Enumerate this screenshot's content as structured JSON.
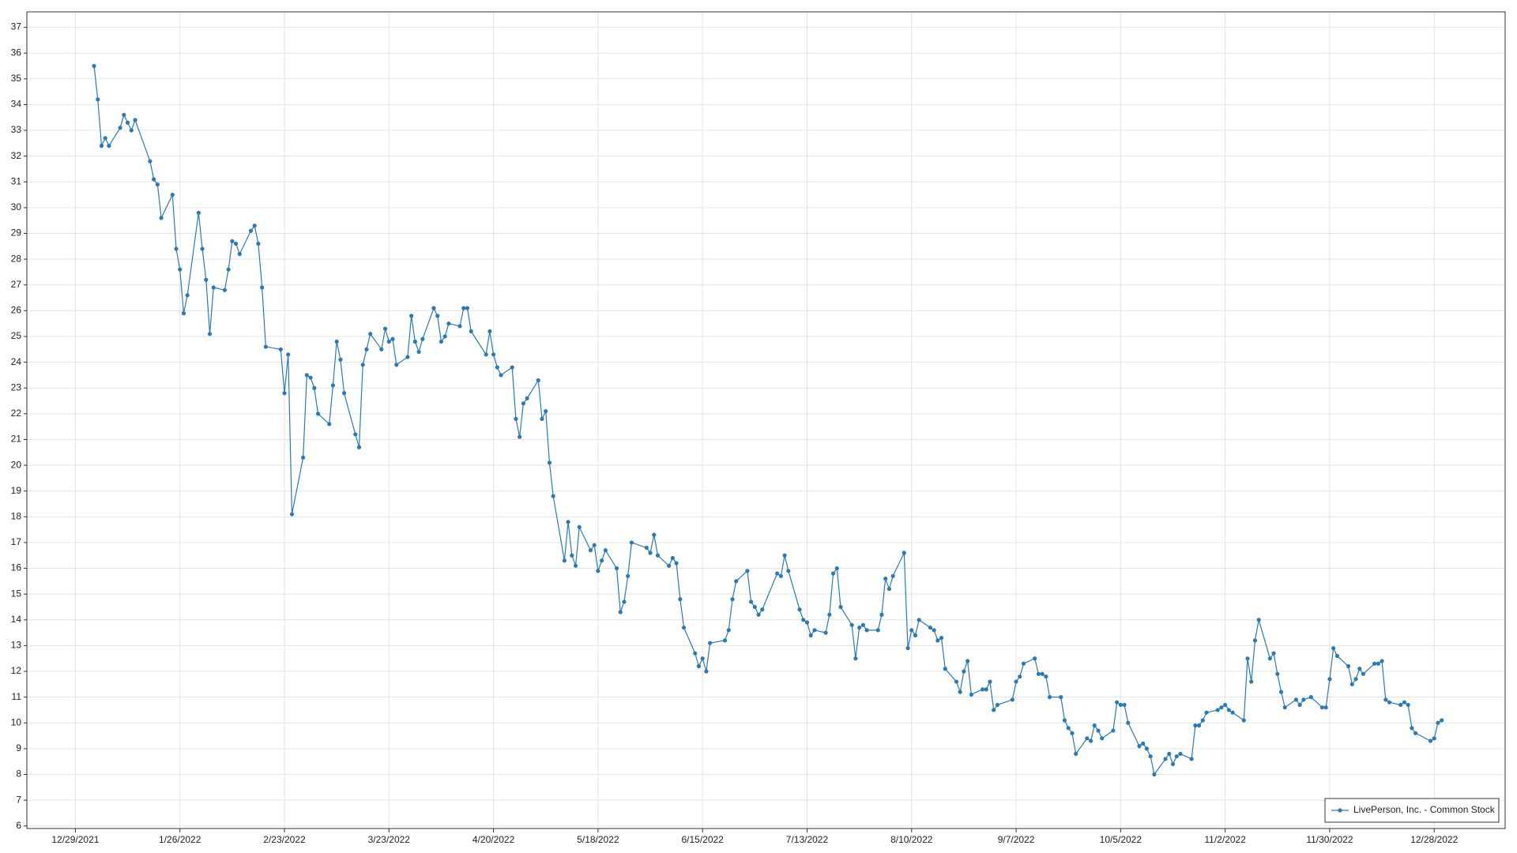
{
  "chart_data": {
    "type": "line",
    "x": [
      "1/3/2022",
      "1/4/2022",
      "1/5/2022",
      "1/6/2022",
      "1/7/2022",
      "1/10/2022",
      "1/11/2022",
      "1/12/2022",
      "1/13/2022",
      "1/14/2022",
      "1/18/2022",
      "1/19/2022",
      "1/20/2022",
      "1/21/2022",
      "1/24/2022",
      "1/25/2022",
      "1/26/2022",
      "1/27/2022",
      "1/28/2022",
      "1/31/2022",
      "2/1/2022",
      "2/2/2022",
      "2/3/2022",
      "2/4/2022",
      "2/7/2022",
      "2/8/2022",
      "2/9/2022",
      "2/10/2022",
      "2/11/2022",
      "2/14/2022",
      "2/15/2022",
      "2/16/2022",
      "2/17/2022",
      "2/18/2022",
      "2/22/2022",
      "2/23/2022",
      "2/24/2022",
      "2/25/2022",
      "2/28/2022",
      "3/1/2022",
      "3/2/2022",
      "3/3/2022",
      "3/4/2022",
      "3/7/2022",
      "3/8/2022",
      "3/9/2022",
      "3/10/2022",
      "3/11/2022",
      "3/14/2022",
      "3/15/2022",
      "3/16/2022",
      "3/17/2022",
      "3/18/2022",
      "3/21/2022",
      "3/22/2022",
      "3/23/2022",
      "3/24/2022",
      "3/25/2022",
      "3/28/2022",
      "3/29/2022",
      "3/30/2022",
      "3/31/2022",
      "4/1/2022",
      "4/4/2022",
      "4/5/2022",
      "4/6/2022",
      "4/7/2022",
      "4/8/2022",
      "4/11/2022",
      "4/12/2022",
      "4/13/2022",
      "4/14/2022",
      "4/18/2022",
      "4/19/2022",
      "4/20/2022",
      "4/21/2022",
      "4/22/2022",
      "4/25/2022",
      "4/26/2022",
      "4/27/2022",
      "4/28/2022",
      "4/29/2022",
      "5/2/2022",
      "5/3/2022",
      "5/4/2022",
      "5/5/2022",
      "5/6/2022",
      "5/9/2022",
      "5/10/2022",
      "5/11/2022",
      "5/12/2022",
      "5/13/2022",
      "5/16/2022",
      "5/17/2022",
      "5/18/2022",
      "5/19/2022",
      "5/20/2022",
      "5/23/2022",
      "5/24/2022",
      "5/25/2022",
      "5/26/2022",
      "5/27/2022",
      "5/31/2022",
      "6/1/2022",
      "6/2/2022",
      "6/3/2022",
      "6/6/2022",
      "6/7/2022",
      "6/8/2022",
      "6/9/2022",
      "6/10/2022",
      "6/13/2022",
      "6/14/2022",
      "6/15/2022",
      "6/16/2022",
      "6/17/2022",
      "6/21/2022",
      "6/22/2022",
      "6/23/2022",
      "6/24/2022",
      "6/27/2022",
      "6/28/2022",
      "6/29/2022",
      "6/30/2022",
      "7/1/2022",
      "7/5/2022",
      "7/6/2022",
      "7/7/2022",
      "7/8/2022",
      "7/11/2022",
      "7/12/2022",
      "7/13/2022",
      "7/14/2022",
      "7/15/2022",
      "7/18/2022",
      "7/19/2022",
      "7/20/2022",
      "7/21/2022",
      "7/22/2022",
      "7/25/2022",
      "7/26/2022",
      "7/27/2022",
      "7/28/2022",
      "7/29/2022",
      "8/1/2022",
      "8/2/2022",
      "8/3/2022",
      "8/4/2022",
      "8/5/2022",
      "8/8/2022",
      "8/9/2022",
      "8/10/2022",
      "8/11/2022",
      "8/12/2022",
      "8/15/2022",
      "8/16/2022",
      "8/17/2022",
      "8/18/2022",
      "8/19/2022",
      "8/22/2022",
      "8/23/2022",
      "8/24/2022",
      "8/25/2022",
      "8/26/2022",
      "8/29/2022",
      "8/30/2022",
      "8/31/2022",
      "9/1/2022",
      "9/2/2022",
      "9/6/2022",
      "9/7/2022",
      "9/8/2022",
      "9/9/2022",
      "9/12/2022",
      "9/13/2022",
      "9/14/2022",
      "9/15/2022",
      "9/16/2022",
      "9/19/2022",
      "9/20/2022",
      "9/21/2022",
      "9/22/2022",
      "9/23/2022",
      "9/26/2022",
      "9/27/2022",
      "9/28/2022",
      "9/29/2022",
      "9/30/2022",
      "10/3/2022",
      "10/4/2022",
      "10/5/2022",
      "10/6/2022",
      "10/7/2022",
      "10/10/2022",
      "10/11/2022",
      "10/12/2022",
      "10/13/2022",
      "10/14/2022",
      "10/17/2022",
      "10/18/2022",
      "10/19/2022",
      "10/20/2022",
      "10/21/2022",
      "10/24/2022",
      "10/25/2022",
      "10/26/2022",
      "10/27/2022",
      "10/28/2022",
      "10/31/2022",
      "11/1/2022",
      "11/2/2022",
      "11/3/2022",
      "11/4/2022",
      "11/7/2022",
      "11/8/2022",
      "11/9/2022",
      "11/10/2022",
      "11/11/2022",
      "11/14/2022",
      "11/15/2022",
      "11/16/2022",
      "11/17/2022",
      "11/18/2022",
      "11/21/2022",
      "11/22/2022",
      "11/23/2022",
      "11/25/2022",
      "11/28/2022",
      "11/29/2022",
      "11/30/2022",
      "12/1/2022",
      "12/2/2022",
      "12/5/2022",
      "12/6/2022",
      "12/7/2022",
      "12/8/2022",
      "12/9/2022",
      "12/12/2022",
      "12/13/2022",
      "12/14/2022",
      "12/15/2022",
      "12/16/2022",
      "12/19/2022",
      "12/20/2022",
      "12/21/2022",
      "12/22/2022",
      "12/23/2022",
      "12/27/2022",
      "12/28/2022",
      "12/29/2022",
      "12/30/2022"
    ],
    "series": [
      {
        "name": "LivePerson, Inc. - Common Stock",
        "color": "#2a7ab8",
        "values": [
          35.5,
          34.2,
          32.4,
          32.7,
          32.4,
          33.1,
          33.6,
          33.3,
          33.0,
          33.4,
          31.8,
          31.1,
          30.9,
          29.6,
          30.5,
          28.4,
          27.6,
          25.9,
          26.6,
          29.8,
          28.4,
          27.2,
          25.1,
          26.9,
          26.8,
          27.6,
          28.7,
          28.6,
          28.2,
          29.1,
          29.3,
          28.6,
          26.9,
          24.6,
          24.5,
          22.8,
          24.3,
          18.1,
          20.3,
          23.5,
          23.4,
          23.0,
          22.0,
          21.6,
          23.1,
          24.8,
          24.1,
          22.8,
          21.2,
          20.7,
          23.9,
          24.5,
          25.1,
          24.5,
          25.3,
          24.8,
          24.9,
          23.9,
          24.2,
          25.8,
          24.8,
          24.4,
          24.9,
          26.1,
          25.8,
          24.8,
          25.0,
          25.5,
          25.4,
          26.1,
          26.1,
          25.2,
          24.3,
          25.2,
          24.3,
          23.8,
          23.5,
          23.8,
          21.8,
          21.1,
          22.4,
          22.6,
          23.3,
          21.8,
          22.1,
          20.1,
          18.8,
          16.3,
          17.8,
          16.5,
          16.1,
          17.6,
          16.7,
          16.9,
          15.9,
          16.3,
          16.7,
          16.0,
          14.3,
          14.7,
          15.7,
          17.0,
          16.8,
          16.6,
          17.3,
          16.5,
          16.1,
          16.4,
          16.2,
          14.8,
          13.7,
          12.7,
          12.2,
          12.5,
          12.0,
          13.1,
          13.2,
          13.6,
          14.8,
          15.5,
          15.9,
          14.7,
          14.5,
          14.2,
          14.4,
          15.8,
          15.7,
          16.5,
          15.9,
          14.4,
          14.0,
          13.9,
          13.4,
          13.6,
          13.5,
          14.2,
          15.8,
          16.0,
          14.5,
          13.8,
          12.5,
          13.7,
          13.8,
          13.6,
          13.6,
          14.2,
          15.6,
          15.2,
          15.7,
          16.6,
          12.9,
          13.6,
          13.4,
          14.0,
          13.7,
          13.6,
          13.2,
          13.3,
          12.1,
          11.6,
          11.2,
          12.0,
          12.4,
          11.1,
          11.3,
          11.3,
          11.6,
          10.5,
          10.7,
          10.9,
          11.6,
          11.8,
          12.3,
          12.5,
          11.9,
          11.9,
          11.8,
          11.0,
          11.0,
          10.1,
          9.8,
          9.6,
          8.8,
          9.4,
          9.3,
          9.9,
          9.7,
          9.4,
          9.7,
          10.8,
          10.7,
          10.7,
          10.0,
          9.1,
          9.2,
          9.0,
          8.7,
          8.0,
          8.6,
          8.8,
          8.4,
          8.7,
          8.8,
          8.6,
          9.9,
          9.9,
          10.1,
          10.4,
          10.5,
          10.6,
          10.7,
          10.5,
          10.4,
          10.1,
          12.5,
          11.6,
          13.2,
          14.0,
          12.5,
          12.7,
          11.9,
          11.2,
          10.6,
          10.9,
          10.7,
          10.9,
          11.0,
          10.6,
          10.6,
          11.7,
          12.9,
          12.6,
          12.2,
          11.5,
          11.7,
          12.1,
          11.9,
          12.3,
          12.3,
          12.4,
          10.9,
          10.8,
          10.7,
          10.8,
          10.7,
          9.8,
          9.6,
          9.3,
          9.4,
          10.0,
          10.1
        ]
      }
    ],
    "xlim": [
      "12/16/2021",
      "1/16/2023"
    ],
    "xticks": [
      "12/29/2021",
      "1/26/2022",
      "2/23/2022",
      "3/23/2022",
      "4/20/2022",
      "5/18/2022",
      "6/15/2022",
      "7/13/2022",
      "8/10/2022",
      "9/7/2022",
      "10/5/2022",
      "11/2/2022",
      "11/30/2022",
      "12/28/2022"
    ],
    "ylim": [
      5.9,
      37.6
    ],
    "yticks": [
      6,
      7,
      8,
      9,
      10,
      11,
      12,
      13,
      14,
      15,
      16,
      17,
      18,
      19,
      20,
      21,
      22,
      23,
      24,
      25,
      26,
      27,
      28,
      29,
      30,
      31,
      32,
      33,
      34,
      35,
      36,
      37
    ],
    "grid": true,
    "legend": "lower right"
  }
}
